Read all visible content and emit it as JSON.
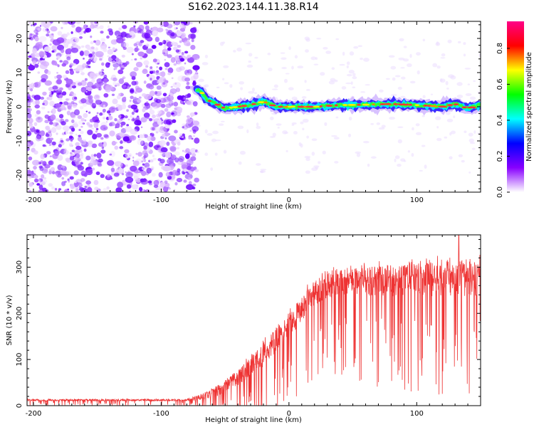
{
  "figure": {
    "title": "S162.2023.144.11.38.R14"
  },
  "chart_data": [
    {
      "type": "heatmap",
      "xlabel": "Height of straight line (km)",
      "ylabel": "Frequency (Hz)",
      "xlim": [
        -205,
        150
      ],
      "ylim": [
        -25,
        25
      ],
      "xticks": [
        -200,
        -100,
        0,
        100
      ],
      "yticks": [
        -20,
        -10,
        0,
        10,
        20
      ],
      "colorbar": {
        "label": "Normalized spectral amplitude",
        "range": [
          0,
          0.95
        ],
        "ticks": [
          "0.0",
          "0.2",
          "0.4",
          "0.6",
          "0.8"
        ],
        "colormap": [
          "#ffffff",
          "#8800ff",
          "#0000ff",
          "#00ffff",
          "#00ff00",
          "#ffff00",
          "#ff0000",
          "#ff0088"
        ]
      },
      "noise_region_km": [
        -205,
        -72
      ],
      "signal_region_km": [
        -72,
        150
      ],
      "signal_center_hz": [
        {
          "x": -72,
          "y": 5
        },
        {
          "x": -68,
          "y": 4
        },
        {
          "x": -64,
          "y": 2
        },
        {
          "x": -58,
          "y": 1
        },
        {
          "x": -50,
          "y": -0.5
        },
        {
          "x": -40,
          "y": 0
        },
        {
          "x": -30,
          "y": 0.5
        },
        {
          "x": -20,
          "y": 1.5
        },
        {
          "x": -10,
          "y": 0
        },
        {
          "x": 0,
          "y": 0
        },
        {
          "x": 20,
          "y": 0
        },
        {
          "x": 40,
          "y": 0.5
        },
        {
          "x": 60,
          "y": 0.6
        },
        {
          "x": 80,
          "y": 0.8
        },
        {
          "x": 100,
          "y": 0.5
        },
        {
          "x": 120,
          "y": 0
        },
        {
          "x": 130,
          "y": 0.8
        },
        {
          "x": 140,
          "y": -0.5
        },
        {
          "x": 150,
          "y": 0.5
        }
      ]
    },
    {
      "type": "line",
      "xlabel": "Height of straight line (km)",
      "ylabel": "SNR (10 * v/v)",
      "xlim": [
        -205,
        150
      ],
      "ylim": [
        0,
        370
      ],
      "xticks": [
        -200,
        -100,
        0,
        100
      ],
      "yticks": [
        0,
        100,
        200,
        300
      ],
      "series": [
        {
          "color": "#ee3333",
          "envelope": [
            {
              "x": -205,
              "mean": 12,
              "spread": 8
            },
            {
              "x": -80,
              "mean": 12,
              "spread": 8
            },
            {
              "x": -60,
              "mean": 25,
              "spread": 40
            },
            {
              "x": -40,
              "mean": 60,
              "spread": 70
            },
            {
              "x": -20,
              "mean": 110,
              "spread": 100
            },
            {
              "x": 0,
              "mean": 175,
              "spread": 110
            },
            {
              "x": 20,
              "mean": 245,
              "spread": 110
            },
            {
              "x": 40,
              "mean": 270,
              "spread": 120
            },
            {
              "x": 80,
              "mean": 270,
              "spread": 140
            },
            {
              "x": 120,
              "mean": 275,
              "spread": 150
            },
            {
              "x": 150,
              "mean": 275,
              "spread": 150
            }
          ],
          "peak": {
            "x": 133,
            "y": 370
          }
        }
      ]
    }
  ]
}
